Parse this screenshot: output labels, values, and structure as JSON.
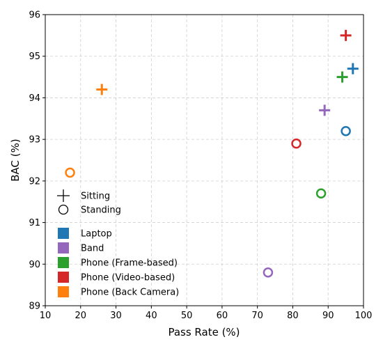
{
  "chart_data": {
    "type": "scatter",
    "xlabel": "Pass Rate (%)",
    "ylabel": "BAC (%)",
    "xlim": [
      10,
      100
    ],
    "ylim": [
      89,
      96
    ],
    "xticks": [
      "10",
      "20",
      "30",
      "40",
      "50",
      "60",
      "70",
      "80",
      "90",
      "100"
    ],
    "yticks": [
      "89",
      "90",
      "91",
      "92",
      "93",
      "94",
      "95",
      "96"
    ],
    "grid": true,
    "legend_position": "lower-left",
    "marker_legend": [
      {
        "label": "Sitting",
        "marker": "plus"
      },
      {
        "label": "Standing",
        "marker": "circle"
      }
    ],
    "color_legend": [
      {
        "label": "Laptop",
        "color": "#1f77b4"
      },
      {
        "label": "Band",
        "color": "#9467bd"
      },
      {
        "label": "Phone (Frame-based)",
        "color": "#2ca02c"
      },
      {
        "label": "Phone (Video-based)",
        "color": "#d62728"
      },
      {
        "label": "Phone (Back Camera)",
        "color": "#ff7f0e"
      }
    ],
    "points": [
      {
        "device": "Laptop",
        "posture": "Sitting",
        "x": 97,
        "y": 94.7
      },
      {
        "device": "Laptop",
        "posture": "Standing",
        "x": 95,
        "y": 93.2
      },
      {
        "device": "Band",
        "posture": "Sitting",
        "x": 89,
        "y": 93.7
      },
      {
        "device": "Band",
        "posture": "Standing",
        "x": 73,
        "y": 89.8
      },
      {
        "device": "Phone (Frame-based)",
        "posture": "Sitting",
        "x": 94,
        "y": 94.5
      },
      {
        "device": "Phone (Frame-based)",
        "posture": "Standing",
        "x": 88,
        "y": 91.7
      },
      {
        "device": "Phone (Video-based)",
        "posture": "Sitting",
        "x": 95,
        "y": 95.5
      },
      {
        "device": "Phone (Video-based)",
        "posture": "Standing",
        "x": 81,
        "y": 92.9
      },
      {
        "device": "Phone (Back Camera)",
        "posture": "Sitting",
        "x": 26,
        "y": 94.2
      },
      {
        "device": "Phone (Back Camera)",
        "posture": "Standing",
        "x": 17,
        "y": 92.2
      }
    ]
  }
}
